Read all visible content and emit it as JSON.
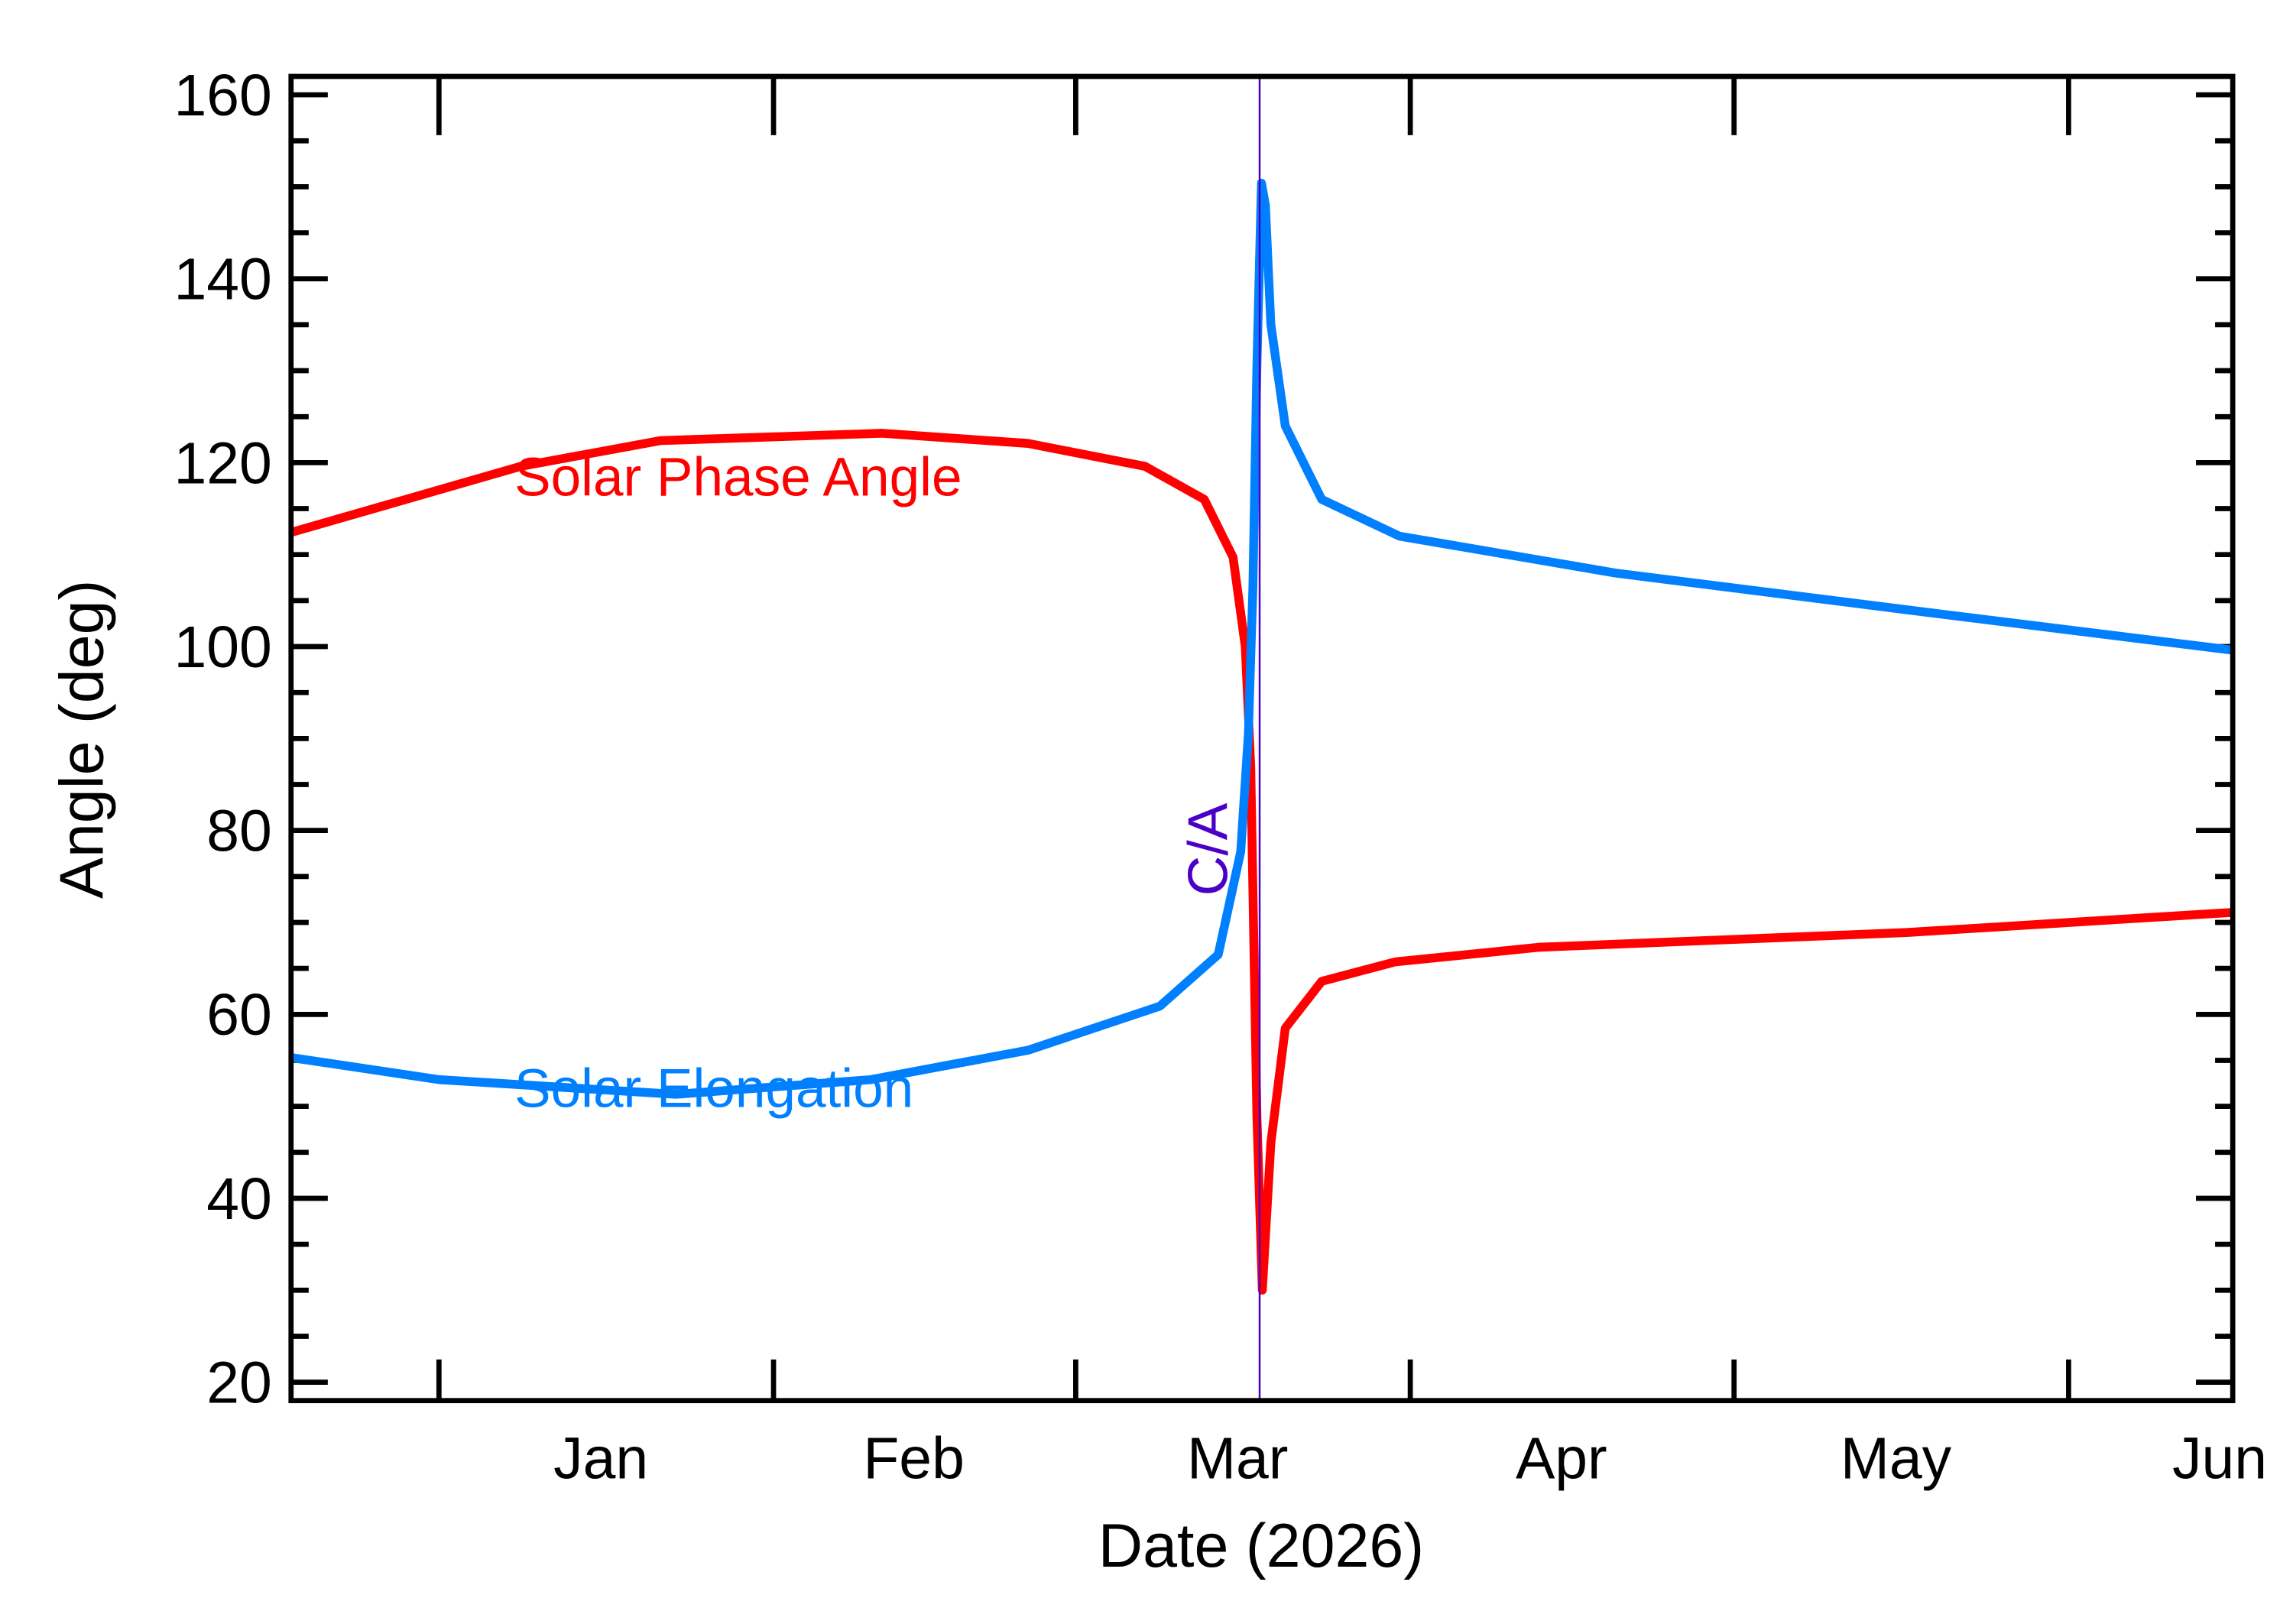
{
  "chart_data": {
    "type": "line",
    "title": "",
    "xlabel": "Date (2026)",
    "ylabel": "Angle (deg)",
    "xlim": [
      "2025-12-18T07:00",
      "2026-06-16T05:00"
    ],
    "ylim": [
      18,
      162
    ],
    "y_major_ticks": [
      20,
      40,
      60,
      80,
      100,
      120,
      140,
      160
    ],
    "y_minor_step": 5,
    "x_month_ticks": [
      "2026-01-01",
      "2026-02-01",
      "2026-03-01",
      "2026-04-01",
      "2026-05-01",
      "2026-06-01"
    ],
    "x_tick_labels": [
      {
        "label": "Jan",
        "at": "2026-01-16"
      },
      {
        "label": "Feb",
        "at": "2026-02-14"
      },
      {
        "label": "Mar",
        "at": "2026-03-16"
      },
      {
        "label": "Apr",
        "at": "2026-04-15"
      },
      {
        "label": "May",
        "at": "2026-05-16"
      },
      {
        "label": "Jun",
        "at": "2026-06-15"
      }
    ],
    "grid": false,
    "legend": "none",
    "closest_approach": {
      "label": "C/A",
      "date": "2026-03-18T01:00",
      "color": "#4b00c8"
    },
    "series": [
      {
        "name": "Solar Phase Angle",
        "color": "#ff0000",
        "label_at": {
          "date": "2026-01-08",
          "y": 118.5
        },
        "points": [
          [
            "2025-12-18T07:00",
            112.4
          ],
          [
            "2026-01-08T14:00",
            119.6
          ],
          [
            "2026-01-21T12:00",
            122.4
          ],
          [
            "2026-02-11T00:00",
            123.2
          ],
          [
            "2026-02-24T14:00",
            122.1
          ],
          [
            "2026-03-07T10:00",
            119.6
          ],
          [
            "2026-03-12T22:00",
            116.0
          ],
          [
            "2026-03-15T14:00",
            109.7
          ],
          [
            "2026-03-16T17:00",
            100.0
          ],
          [
            "2026-03-17T05:00",
            87.0
          ],
          [
            "2026-03-17T12:00",
            68.0
          ],
          [
            "2026-03-17T19:00",
            49.0
          ],
          [
            "2026-03-18T07:00",
            30.0
          ],
          [
            "2026-03-19T02:00",
            46.0
          ],
          [
            "2026-03-20T10:00",
            58.5
          ],
          [
            "2026-03-23T19:00",
            63.6
          ],
          [
            "2026-03-30T14:00",
            65.7
          ],
          [
            "2026-04-13T00:00",
            67.3
          ],
          [
            "2026-05-17T00:00",
            68.9
          ],
          [
            "2026-06-16T05:00",
            71.1
          ]
        ]
      },
      {
        "name": "Solar Elongation",
        "color": "#0080ff",
        "label_at": {
          "date": "2026-01-08",
          "y": 52
        },
        "points": [
          [
            "2025-12-18T07:00",
            55.3
          ],
          [
            "2026-01-01T00:00",
            52.9
          ],
          [
            "2026-01-22T22:00",
            51.3
          ],
          [
            "2026-02-10T00:00",
            52.9
          ],
          [
            "2026-02-24T14:00",
            56.1
          ],
          [
            "2026-03-08T19:00",
            60.9
          ],
          [
            "2026-03-14T05:00",
            66.5
          ],
          [
            "2026-03-16T07:00",
            77.7
          ],
          [
            "2026-03-17T00:00",
            90.5
          ],
          [
            "2026-03-17T10:00",
            106.5
          ],
          [
            "2026-03-17T19:00",
            130.4
          ],
          [
            "2026-03-18T05:00",
            150.4
          ],
          [
            "2026-03-18T14:00",
            148.0
          ],
          [
            "2026-03-19T02:00",
            135.0
          ],
          [
            "2026-03-20T10:00",
            124.0
          ],
          [
            "2026-03-23T19:00",
            116.0
          ],
          [
            "2026-03-31T00:00",
            112.0
          ],
          [
            "2026-04-20T00:00",
            108.0
          ],
          [
            "2026-05-17T00:00",
            104.0
          ],
          [
            "2026-06-16T05:00",
            99.6
          ]
        ]
      }
    ]
  }
}
